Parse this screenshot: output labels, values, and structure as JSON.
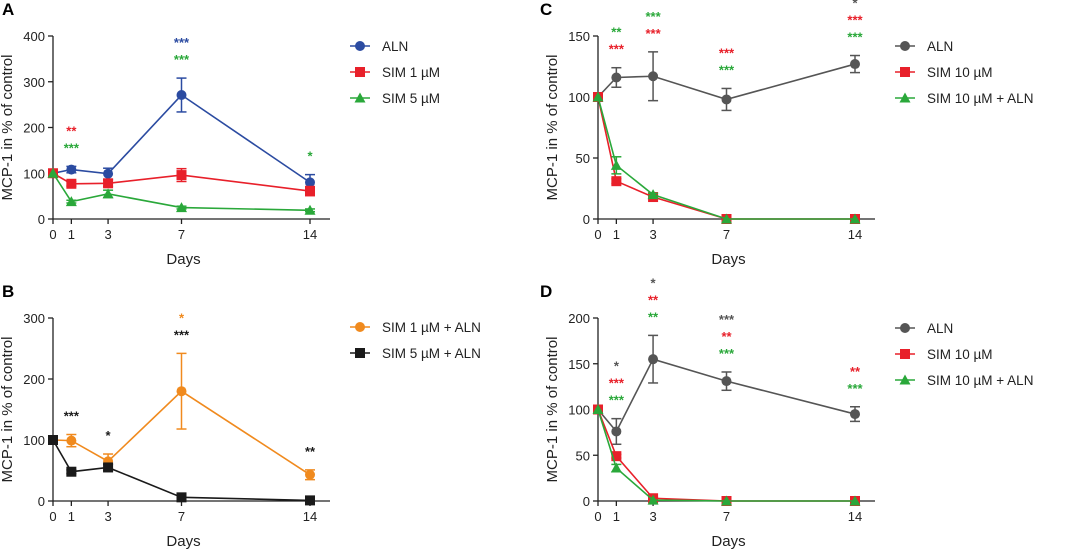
{
  "chart_data": [
    {
      "panel": "A",
      "type": "line",
      "xlabel": "Days",
      "ylabel": "MCP-1 in % of control",
      "x": [
        0,
        1,
        3,
        7,
        14
      ],
      "xticks": [
        "0",
        "1",
        "3",
        "7",
        "14"
      ],
      "ylim": [
        0,
        400
      ],
      "yticks": [
        0,
        100,
        200,
        300,
        400
      ],
      "grid": false,
      "legend": "right",
      "series": [
        {
          "name": "ALN",
          "color": "#2b4ba1",
          "marker": "circle",
          "values": [
            100,
            108,
            99,
            271,
            80
          ],
          "error": [
            0,
            7,
            12,
            37,
            17
          ]
        },
        {
          "name": "SIM 1 µM",
          "color": "#e8202a",
          "marker": "square",
          "values": [
            100,
            77,
            78,
            96,
            61
          ],
          "error": [
            0,
            5,
            7,
            14,
            10
          ]
        },
        {
          "name": "SIM 5 µM",
          "color": "#2aa83a",
          "marker": "triangle",
          "values": [
            100,
            38,
            55,
            25,
            19
          ],
          "error": [
            0,
            3,
            8,
            3,
            3
          ]
        }
      ],
      "annotations": [
        {
          "day": 1,
          "marks": [
            {
              "text": "**",
              "color": "#e8202a"
            },
            {
              "text": "***",
              "color": "#2aa83a"
            }
          ]
        },
        {
          "day": 7,
          "marks": [
            {
              "text": "***",
              "color": "#2b4ba1"
            },
            {
              "text": "***",
              "color": "#2aa83a"
            }
          ]
        },
        {
          "day": 14,
          "marks": [
            {
              "text": "*",
              "color": "#2aa83a"
            }
          ]
        }
      ]
    },
    {
      "panel": "B",
      "type": "line",
      "xlabel": "Days",
      "ylabel": "MCP-1 in % of control",
      "x": [
        0,
        1,
        3,
        7,
        14
      ],
      "xticks": [
        "0",
        "1",
        "3",
        "7",
        "14"
      ],
      "ylim": [
        0,
        300
      ],
      "yticks": [
        0,
        100,
        200,
        300
      ],
      "grid": false,
      "legend": "right",
      "series": [
        {
          "name": "SIM 1 µM + ALN",
          "color": "#f08a1e",
          "marker": "circle",
          "values": [
            100,
            99,
            65,
            180,
            43
          ],
          "error": [
            0,
            10,
            12,
            62,
            8
          ]
        },
        {
          "name": "SIM 5 µM + ALN",
          "color": "#1a1a1a",
          "marker": "square",
          "values": [
            100,
            48,
            55,
            6,
            1
          ],
          "error": [
            0,
            3,
            5,
            2,
            1
          ]
        }
      ],
      "annotations": [
        {
          "day": 1,
          "marks": [
            {
              "text": "***",
              "color": "#1a1a1a"
            }
          ]
        },
        {
          "day": 3,
          "marks": [
            {
              "text": "*",
              "color": "#1a1a1a"
            }
          ]
        },
        {
          "day": 7,
          "marks": [
            {
              "text": "*",
              "color": "#f08a1e"
            },
            {
              "text": "***",
              "color": "#1a1a1a"
            }
          ]
        },
        {
          "day": 14,
          "marks": [
            {
              "text": "**",
              "color": "#1a1a1a"
            }
          ]
        }
      ]
    },
    {
      "panel": "C",
      "type": "line",
      "xlabel": "Days",
      "ylabel": "MCP-1 in % of control",
      "x": [
        0,
        1,
        3,
        7,
        14
      ],
      "xticks": [
        "0",
        "1",
        "3",
        "7",
        "14"
      ],
      "ylim": [
        0,
        150
      ],
      "yticks": [
        0,
        50,
        100,
        150
      ],
      "grid": false,
      "legend": "right",
      "series": [
        {
          "name": "ALN",
          "color": "#555555",
          "marker": "circle",
          "values": [
            100,
            116,
            117,
            98,
            127
          ],
          "error": [
            0,
            8,
            20,
            9,
            7
          ]
        },
        {
          "name": "SIM 10 µM",
          "color": "#e8202a",
          "marker": "square",
          "values": [
            100,
            31,
            18,
            0,
            0
          ],
          "error": [
            0,
            2,
            1,
            0,
            0
          ]
        },
        {
          "name": "SIM 10 µM + ALN",
          "color": "#2aa83a",
          "marker": "triangle",
          "values": [
            100,
            44,
            20,
            0,
            0
          ],
          "error": [
            0,
            7,
            1,
            0,
            0
          ]
        }
      ],
      "annotations": [
        {
          "day": 1,
          "marks": [
            {
              "text": "**",
              "color": "#2aa83a"
            },
            {
              "text": "***",
              "color": "#e8202a"
            }
          ]
        },
        {
          "day": 3,
          "marks": [
            {
              "text": "***",
              "color": "#2aa83a"
            },
            {
              "text": "***",
              "color": "#e8202a"
            }
          ]
        },
        {
          "day": 7,
          "marks": [
            {
              "text": "***",
              "color": "#e8202a"
            },
            {
              "text": "***",
              "color": "#2aa83a"
            }
          ]
        },
        {
          "day": 14,
          "marks": [
            {
              "text": "*",
              "color": "#555555"
            },
            {
              "text": "***",
              "color": "#e8202a"
            },
            {
              "text": "***",
              "color": "#2aa83a"
            }
          ]
        }
      ]
    },
    {
      "panel": "D",
      "type": "line",
      "xlabel": "Days",
      "ylabel": "MCP-1 in % of control",
      "x": [
        0,
        1,
        3,
        7,
        14
      ],
      "xticks": [
        "0",
        "1",
        "3",
        "7",
        "14"
      ],
      "ylim": [
        0,
        200
      ],
      "yticks": [
        0,
        50,
        100,
        150,
        200
      ],
      "grid": false,
      "legend": "right",
      "series": [
        {
          "name": "ALN",
          "color": "#555555",
          "marker": "circle",
          "values": [
            100,
            76,
            155,
            131,
            95
          ],
          "error": [
            0,
            14,
            26,
            10,
            8
          ]
        },
        {
          "name": "SIM 10 µM",
          "color": "#e8202a",
          "marker": "square",
          "values": [
            100,
            49,
            3,
            0,
            0
          ],
          "error": [
            0,
            2,
            1,
            0,
            0
          ]
        },
        {
          "name": "SIM 10 µM + ALN",
          "color": "#2aa83a",
          "marker": "triangle",
          "values": [
            100,
            36,
            1,
            0,
            0
          ],
          "error": [
            0,
            4,
            0,
            0,
            0
          ]
        }
      ],
      "annotations": [
        {
          "day": 1,
          "marks": [
            {
              "text": "*",
              "color": "#555555"
            },
            {
              "text": "***",
              "color": "#e8202a"
            },
            {
              "text": "***",
              "color": "#2aa83a"
            }
          ]
        },
        {
          "day": 3,
          "marks": [
            {
              "text": "*",
              "color": "#555555"
            },
            {
              "text": "**",
              "color": "#e8202a"
            },
            {
              "text": "**",
              "color": "#2aa83a"
            }
          ]
        },
        {
          "day": 7,
          "marks": [
            {
              "text": "***",
              "color": "#555555"
            },
            {
              "text": "**",
              "color": "#e8202a"
            },
            {
              "text": "***",
              "color": "#2aa83a"
            }
          ]
        },
        {
          "day": 14,
          "marks": [
            {
              "text": "**",
              "color": "#e8202a"
            },
            {
              "text": "***",
              "color": "#2aa83a"
            }
          ]
        }
      ]
    }
  ]
}
